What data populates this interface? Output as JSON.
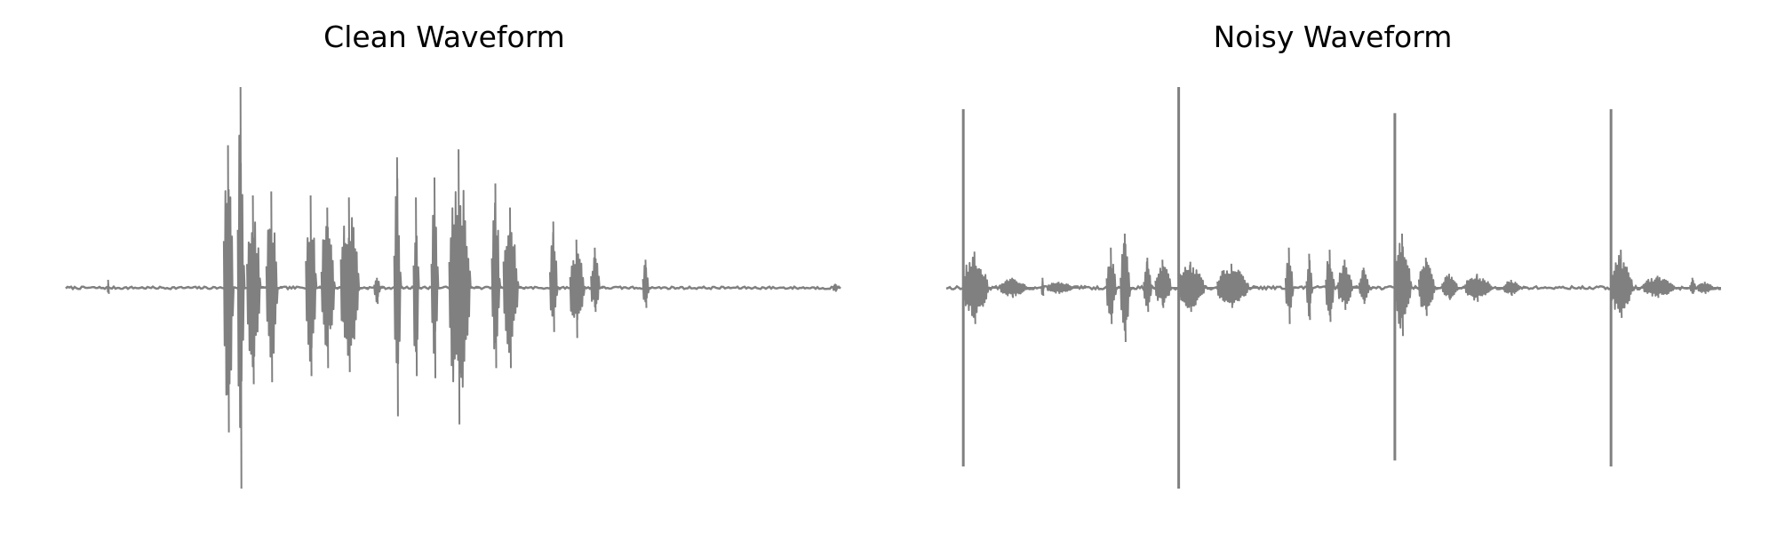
{
  "colors": {
    "waveform": "#808080",
    "background": "#ffffff"
  },
  "chart_data": [
    {
      "type": "line",
      "title": "Clean Waveform",
      "xlabel": "",
      "ylabel": "",
      "axes_visible": false,
      "grid": false,
      "xlim": [
        0,
        1
      ],
      "ylim": [
        -1,
        1
      ],
      "baseline_noise": 0.006,
      "bursts": [
        {
          "x0": 0.054,
          "x1": 0.056,
          "pos": 0.04,
          "neg": 0.03
        },
        {
          "x0": 0.204,
          "x1": 0.222,
          "pos": 0.71,
          "neg": 0.72
        },
        {
          "x0": 0.222,
          "x1": 0.234,
          "pos": 1.0,
          "neg": 1.0
        },
        {
          "x0": 0.234,
          "x1": 0.259,
          "pos": 0.46,
          "neg": 0.48
        },
        {
          "x0": 0.259,
          "x1": 0.28,
          "pos": 0.48,
          "neg": 0.47
        },
        {
          "x0": 0.31,
          "x1": 0.33,
          "pos": 0.46,
          "neg": 0.44
        },
        {
          "x0": 0.33,
          "x1": 0.355,
          "pos": 0.4,
          "neg": 0.4
        },
        {
          "x0": 0.355,
          "x1": 0.39,
          "pos": 0.45,
          "neg": 0.42
        },
        {
          "x0": 0.398,
          "x1": 0.41,
          "pos": 0.05,
          "neg": 0.08
        },
        {
          "x0": 0.424,
          "x1": 0.436,
          "pos": 0.65,
          "neg": 0.64
        },
        {
          "x0": 0.449,
          "x1": 0.459,
          "pos": 0.45,
          "neg": 0.44
        },
        {
          "x0": 0.472,
          "x1": 0.485,
          "pos": 0.55,
          "neg": 0.45
        },
        {
          "x0": 0.495,
          "x1": 0.535,
          "pos": 0.69,
          "neg": 0.68
        },
        {
          "x0": 0.55,
          "x1": 0.565,
          "pos": 0.52,
          "neg": 0.4
        },
        {
          "x0": 0.565,
          "x1": 0.593,
          "pos": 0.4,
          "neg": 0.4
        },
        {
          "x0": 0.625,
          "x1": 0.639,
          "pos": 0.33,
          "neg": 0.22
        },
        {
          "x0": 0.651,
          "x1": 0.678,
          "pos": 0.24,
          "neg": 0.25
        },
        {
          "x0": 0.678,
          "x1": 0.694,
          "pos": 0.2,
          "neg": 0.12
        },
        {
          "x0": 0.745,
          "x1": 0.756,
          "pos": 0.14,
          "neg": 0.1
        },
        {
          "x0": 0.99,
          "x1": 1.0,
          "pos": 0.02,
          "neg": 0.02
        }
      ]
    },
    {
      "type": "line",
      "title": "Noisy Waveform",
      "xlabel": "",
      "ylabel": "",
      "axes_visible": false,
      "grid": false,
      "xlim": [
        0,
        1
      ],
      "ylim": [
        -1,
        1
      ],
      "baseline_noise": 0.008,
      "spikes": [
        {
          "x": 0.022,
          "pos": 0.89,
          "neg": 0.89
        },
        {
          "x": 0.3,
          "pos": 1.0,
          "neg": 1.0
        },
        {
          "x": 0.579,
          "pos": 0.87,
          "neg": 0.86
        },
        {
          "x": 0.858,
          "pos": 0.89,
          "neg": 0.89
        }
      ],
      "bursts": [
        {
          "x0": 0.022,
          "x1": 0.07,
          "pos": 0.18,
          "neg": 0.18
        },
        {
          "x0": 0.07,
          "x1": 0.12,
          "pos": 0.05,
          "neg": 0.05
        },
        {
          "x0": 0.123,
          "x1": 0.127,
          "pos": 0.05,
          "neg": 0.04
        },
        {
          "x0": 0.13,
          "x1": 0.18,
          "pos": 0.03,
          "neg": 0.03
        },
        {
          "x0": 0.207,
          "x1": 0.225,
          "pos": 0.2,
          "neg": 0.18
        },
        {
          "x0": 0.225,
          "x1": 0.243,
          "pos": 0.27,
          "neg": 0.27
        },
        {
          "x0": 0.255,
          "x1": 0.27,
          "pos": 0.15,
          "neg": 0.12
        },
        {
          "x0": 0.27,
          "x1": 0.3,
          "pos": 0.14,
          "neg": 0.1
        },
        {
          "x0": 0.3,
          "x1": 0.35,
          "pos": 0.13,
          "neg": 0.12
        },
        {
          "x0": 0.35,
          "x1": 0.41,
          "pos": 0.12,
          "neg": 0.1
        },
        {
          "x0": 0.438,
          "x1": 0.452,
          "pos": 0.2,
          "neg": 0.18
        },
        {
          "x0": 0.465,
          "x1": 0.476,
          "pos": 0.17,
          "neg": 0.16
        },
        {
          "x0": 0.49,
          "x1": 0.506,
          "pos": 0.19,
          "neg": 0.17
        },
        {
          "x0": 0.506,
          "x1": 0.533,
          "pos": 0.14,
          "neg": 0.11
        },
        {
          "x0": 0.533,
          "x1": 0.552,
          "pos": 0.1,
          "neg": 0.08
        },
        {
          "x0": 0.579,
          "x1": 0.61,
          "pos": 0.27,
          "neg": 0.24
        },
        {
          "x0": 0.61,
          "x1": 0.64,
          "pos": 0.15,
          "neg": 0.14
        },
        {
          "x0": 0.64,
          "x1": 0.67,
          "pos": 0.07,
          "neg": 0.06
        },
        {
          "x0": 0.67,
          "x1": 0.72,
          "pos": 0.07,
          "neg": 0.07
        },
        {
          "x0": 0.72,
          "x1": 0.75,
          "pos": 0.04,
          "neg": 0.04
        },
        {
          "x0": 0.858,
          "x1": 0.9,
          "pos": 0.19,
          "neg": 0.15
        },
        {
          "x0": 0.9,
          "x1": 0.96,
          "pos": 0.06,
          "neg": 0.05
        },
        {
          "x0": 0.96,
          "x1": 0.97,
          "pos": 0.05,
          "neg": 0.03
        },
        {
          "x0": 0.97,
          "x1": 1.0,
          "pos": 0.03,
          "neg": 0.03
        }
      ]
    }
  ]
}
